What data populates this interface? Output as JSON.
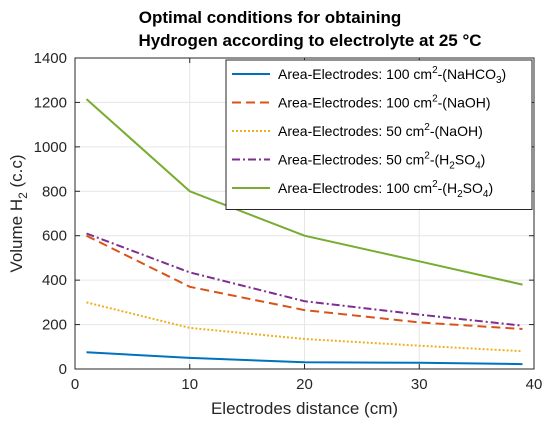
{
  "chart_data": {
    "type": "line",
    "title": [
      "Optimal conditions for obtaining",
      "Hydrogen according to electrolyte at 25 °C"
    ],
    "xlabel": "Electrodes distance (cm)",
    "ylabel": {
      "main": "Volume H",
      "sub": "2",
      "unit": " (c.c)"
    },
    "xlim": [
      0,
      40
    ],
    "ylim": [
      0,
      1400
    ],
    "xticks": [
      0,
      10,
      20,
      30,
      40
    ],
    "yticks": [
      0,
      200,
      400,
      600,
      800,
      1000,
      1200,
      1400
    ],
    "grid": true,
    "legend_position": "top-right",
    "series": [
      {
        "label_parts": [
          {
            "text": "Area-Electrodes: 100 cm",
            "style": "normal"
          },
          {
            "text": "2",
            "style": "sup"
          },
          {
            "text": "-(NaHCO",
            "style": "normal"
          },
          {
            "text": "3",
            "style": "sub"
          },
          {
            "text": ")",
            "style": "normal"
          }
        ],
        "color": "#0072BD",
        "dash": "solid",
        "x": [
          1,
          10,
          20,
          30,
          39
        ],
        "y": [
          75,
          50,
          30,
          28,
          22
        ]
      },
      {
        "label_parts": [
          {
            "text": "Area-Electrodes: 100 cm",
            "style": "normal"
          },
          {
            "text": "2",
            "style": "sup"
          },
          {
            "text": "-(NaOH)",
            "style": "normal"
          }
        ],
        "color": "#D95319",
        "dash": "dashed",
        "x": [
          1,
          10,
          20,
          30,
          39
        ],
        "y": [
          600,
          370,
          265,
          210,
          180
        ]
      },
      {
        "label_parts": [
          {
            "text": "Area-Electrodes: 50 cm",
            "style": "normal"
          },
          {
            "text": "2",
            "style": "sup"
          },
          {
            "text": "-(NaOH)",
            "style": "normal"
          }
        ],
        "color": "#EDB120",
        "dash": "dotted",
        "x": [
          1,
          10,
          20,
          30,
          39
        ],
        "y": [
          300,
          185,
          135,
          105,
          80
        ]
      },
      {
        "label_parts": [
          {
            "text": "Area-Electrodes: 50 cm",
            "style": "normal"
          },
          {
            "text": "2",
            "style": "sup"
          },
          {
            "text": "-(H",
            "style": "normal"
          },
          {
            "text": "2",
            "style": "sub"
          },
          {
            "text": "SO",
            "style": "normal"
          },
          {
            "text": "4",
            "style": "sub"
          },
          {
            "text": ")",
            "style": "normal"
          }
        ],
        "color": "#7E2F8E",
        "dash": "dashdot",
        "x": [
          1,
          10,
          20,
          30,
          39
        ],
        "y": [
          610,
          435,
          305,
          245,
          195
        ]
      },
      {
        "label_parts": [
          {
            "text": "Area-Electrodes: 100 cm",
            "style": "normal"
          },
          {
            "text": "2",
            "style": "sup"
          },
          {
            "text": "-(H",
            "style": "normal"
          },
          {
            "text": "2",
            "style": "sub"
          },
          {
            "text": "SO",
            "style": "normal"
          },
          {
            "text": "4",
            "style": "sub"
          },
          {
            "text": ")",
            "style": "normal"
          }
        ],
        "color": "#77AC30",
        "dash": "solid",
        "x": [
          1,
          10,
          20,
          30,
          39
        ],
        "y": [
          1215,
          800,
          600,
          485,
          380
        ]
      }
    ]
  }
}
